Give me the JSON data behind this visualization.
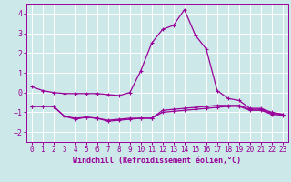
{
  "xlabel": "Windchill (Refroidissement éolien,°C)",
  "x": [
    0,
    1,
    2,
    3,
    4,
    5,
    6,
    7,
    8,
    9,
    10,
    11,
    12,
    13,
    14,
    15,
    16,
    17,
    18,
    19,
    20,
    21,
    22,
    23
  ],
  "line1": [
    0.3,
    0.1,
    0.0,
    -0.05,
    -0.05,
    -0.05,
    -0.05,
    -0.1,
    -0.15,
    0.0,
    1.1,
    2.5,
    3.2,
    3.4,
    4.2,
    2.9,
    2.2,
    0.1,
    -0.3,
    -0.4,
    -0.8,
    -0.8,
    -1.0,
    -1.1
  ],
  "line2": [
    -0.7,
    -0.7,
    -0.7,
    -1.2,
    -1.3,
    -1.25,
    -1.3,
    -1.4,
    -1.35,
    -1.3,
    -1.3,
    -1.3,
    -0.9,
    -0.85,
    -0.8,
    -0.75,
    -0.7,
    -0.65,
    -0.65,
    -0.65,
    -0.85,
    -0.85,
    -1.05,
    -1.1
  ],
  "line3": [
    -0.7,
    -0.7,
    -0.7,
    -1.2,
    -1.35,
    -1.25,
    -1.3,
    -1.45,
    -1.4,
    -1.35,
    -1.3,
    -1.3,
    -1.0,
    -0.95,
    -0.9,
    -0.85,
    -0.8,
    -0.75,
    -0.7,
    -0.7,
    -0.9,
    -0.9,
    -1.1,
    -1.15
  ],
  "line_color": "#990099",
  "bg_color": "#cce8e8",
  "grid_color": "#ffffff",
  "ylim": [
    -2.5,
    4.5
  ],
  "xlim": [
    -0.5,
    23.5
  ],
  "yticks": [
    -2,
    -1,
    0,
    1,
    2,
    3,
    4
  ],
  "xticks": [
    0,
    1,
    2,
    3,
    4,
    5,
    6,
    7,
    8,
    9,
    10,
    11,
    12,
    13,
    14,
    15,
    16,
    17,
    18,
    19,
    20,
    21,
    22,
    23
  ],
  "tick_fontsize": 5.5,
  "xlabel_fontsize": 6.0,
  "marker_size": 3,
  "linewidth": 0.9
}
